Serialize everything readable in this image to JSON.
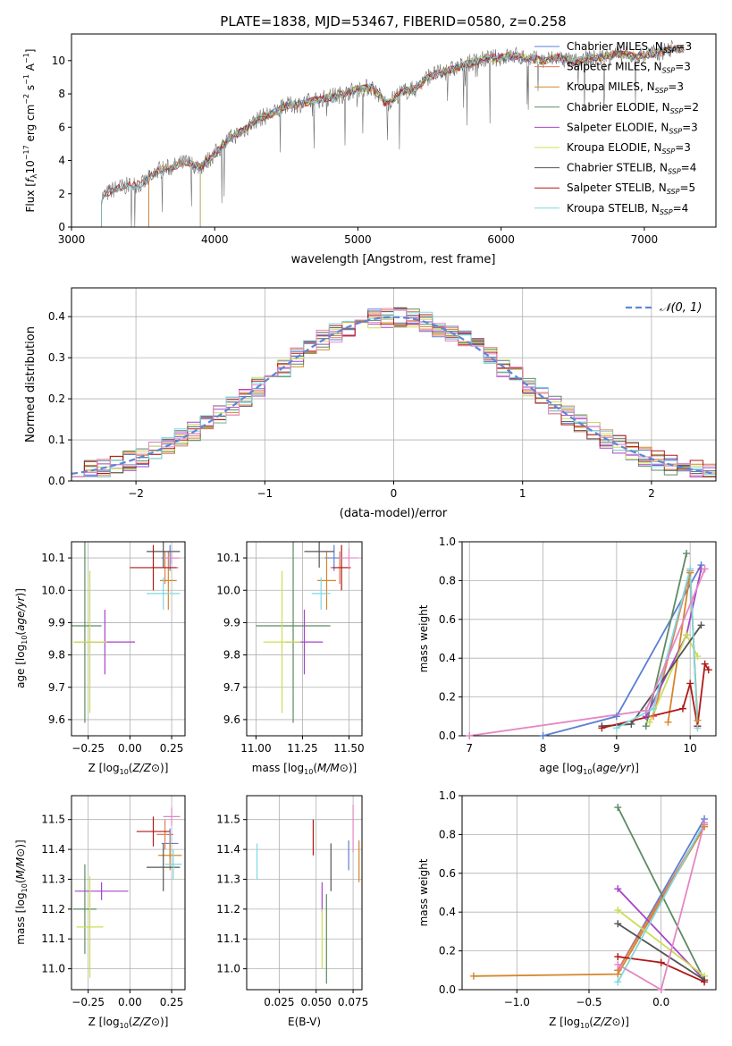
{
  "figure_title": "PLATE=1838, MJD=53467, FIBERID=0580, z=0.258",
  "colors": {
    "Chabrier MILES": "#5b7fd4",
    "Salpeter MILES": "#e57a55",
    "Kroupa MILES": "#d4862a",
    "Chabrier ELODIE": "#5e8a62",
    "Salpeter ELODIE": "#a544c8",
    "Kroupa ELODIE": "#ccdd55",
    "Chabrier STELIB": "#555555",
    "Salpeter STELIB": "#b01818",
    "Kroupa STELIB": "#7dd8e0",
    "pink": "#e388c4"
  },
  "chart_data": [
    {
      "type": "line",
      "id": "spectrum",
      "title": "PLATE=1838, MJD=53467, FIBERID=0580, z=0.258",
      "xlabel": "wavelength [Angstrom, rest frame]",
      "ylabel": "Flux [fλ 10⁻¹⁷ erg cm⁻² s⁻¹ A⁻¹]",
      "xlim": [
        3000,
        7500
      ],
      "ylim": [
        0,
        11.6
      ],
      "xticks": [
        3000,
        4000,
        5000,
        6000,
        7000
      ],
      "yticks": [
        0,
        2,
        4,
        6,
        8,
        10
      ],
      "grid": false,
      "legend_position": "right",
      "legend": [
        "Chabrier MILES, N_SSP=3",
        "Salpeter MILES, N_SSP=3",
        "Kroupa MILES, N_SSP=3",
        "Chabrier ELODIE, N_SSP=2",
        "Salpeter ELODIE, N_SSP=3",
        "Kroupa ELODIE, N_SSP=3",
        "Chabrier STELIB, N_SSP=4",
        "Salpeter STELIB, N_SSP=5",
        "Kroupa STELIB, N_SSP=4"
      ],
      "legend_labels": [
        {
          "name": "Chabrier MILES, N",
          "sub": "SSP",
          "tail": "=3"
        },
        {
          "name": "Salpeter MILES, N",
          "sub": "SSP",
          "tail": "=3"
        },
        {
          "name": "Kroupa MILES, N",
          "sub": "SSP",
          "tail": "=3"
        },
        {
          "name": "Chabrier ELODIE, N",
          "sub": "SSP",
          "tail": "=2"
        },
        {
          "name": "Salpeter ELODIE, N",
          "sub": "SSP",
          "tail": "=3"
        },
        {
          "name": "Kroupa ELODIE, N",
          "sub": "SSP",
          "tail": "=3"
        },
        {
          "name": "Chabrier STELIB, N",
          "sub": "SSP",
          "tail": "=4"
        },
        {
          "name": "Salpeter STELIB, N",
          "sub": "SSP",
          "tail": "=5"
        },
        {
          "name": "Kroupa STELIB, N",
          "sub": "SSP",
          "tail": "=4"
        }
      ],
      "data_series": {
        "name": "data",
        "x": [
          3210,
          3300,
          3400,
          3500,
          3600,
          3700,
          3800,
          3900,
          4000,
          4100,
          4200,
          4300,
          4400,
          4500,
          4600,
          4700,
          4800,
          4900,
          5000,
          5100,
          5200,
          5300,
          5400,
          5500,
          5600,
          5700,
          5800,
          5900,
          6000,
          6100,
          6200,
          6300,
          6400,
          6500,
          6600,
          6700,
          6800,
          6900,
          7000,
          7100,
          7200
        ],
        "y": [
          1.8,
          2.3,
          2.5,
          2.6,
          3.4,
          3.6,
          3.9,
          3.6,
          4.4,
          5.3,
          5.8,
          6.5,
          6.8,
          7.3,
          7.4,
          7.6,
          7.8,
          8.0,
          8.3,
          8.4,
          7.4,
          8.1,
          8.3,
          9.1,
          9.3,
          9.6,
          9.9,
          10.1,
          10.2,
          10.3,
          10.1,
          10.0,
          10.2,
          9.9,
          10.1,
          10.2,
          10.4,
          10.3,
          10.3,
          10.5,
          10.7
        ]
      },
      "model_starts": {
        "Chabrier MILES": 3540,
        "Salpeter MILES": 3540,
        "Kroupa MILES": 3540,
        "Chabrier ELODIE": 3900,
        "Salpeter ELODIE": 3900,
        "Kroupa ELODIE": 3900,
        "Chabrier STELIB": 3210,
        "Salpeter STELIB": 3210,
        "Kroupa STELIB": 3210
      }
    },
    {
      "type": "area",
      "id": "residuals",
      "xlabel": "(data-model)/error",
      "ylabel": "Normed distribution",
      "xlim": [
        -2.5,
        2.5
      ],
      "ylim": [
        0,
        0.47
      ],
      "xticks": [
        -2,
        -1,
        0,
        1,
        2
      ],
      "yticks": [
        0,
        0.1,
        0.2,
        0.3,
        0.4
      ],
      "grid": true,
      "legend_position": "top-right",
      "legend": [
        "𝒩(0, 1)"
      ],
      "reference": {
        "name": "N(0,1)",
        "mean": 0,
        "sigma": 1
      },
      "bin_width": 0.1
    },
    {
      "type": "scatter",
      "id": "age_vs_Z",
      "xlabel": "Z [log10(Z/Z⊙)]",
      "ylabel": "age [log10(age/yr)]",
      "xlim": [
        -0.35,
        0.33
      ],
      "ylim": [
        9.55,
        10.15
      ],
      "xticks": [
        -0.25,
        0.0,
        0.25
      ],
      "yticks": [
        9.6,
        9.7,
        9.8,
        9.9,
        10.0,
        10.1
      ],
      "grid": true,
      "points": [
        {
          "model": "Chabrier MILES",
          "x": 0.24,
          "y": 10.1,
          "xerr": 0.05,
          "yerr": 0.04
        },
        {
          "model": "Salpeter MILES",
          "x": 0.21,
          "y": 10.07,
          "xerr": 0.08,
          "yerr": 0.05
        },
        {
          "model": "Kroupa MILES",
          "x": 0.23,
          "y": 10.03,
          "xerr": 0.05,
          "yerr": 0.09
        },
        {
          "model": "Chabrier ELODIE",
          "x": -0.27,
          "y": 9.89,
          "xerr": 0.1,
          "yerr": 0.3
        },
        {
          "model": "Salpeter ELODIE",
          "x": -0.15,
          "y": 9.84,
          "xerr": 0.18,
          "yerr": 0.1
        },
        {
          "model": "Kroupa ELODIE",
          "x": -0.24,
          "y": 9.84,
          "xerr": 0.1,
          "yerr": 0.22
        },
        {
          "model": "Chabrier STELIB",
          "x": 0.2,
          "y": 10.12,
          "xerr": 0.1,
          "yerr": 0.05
        },
        {
          "model": "Salpeter STELIB",
          "x": 0.14,
          "y": 10.07,
          "xerr": 0.14,
          "yerr": 0.07
        },
        {
          "model": "Kroupa STELIB",
          "x": 0.2,
          "y": 9.99,
          "xerr": 0.1,
          "yerr": 0.05
        },
        {
          "model": "pink",
          "x": 0.25,
          "y": 10.1,
          "xerr": 0.05,
          "yerr": 0.02
        }
      ]
    },
    {
      "type": "scatter",
      "id": "age_vs_mass",
      "xlabel": "mass [log10(M/M⊙)]",
      "xlim": [
        10.95,
        11.57
      ],
      "ylim": [
        9.55,
        10.15
      ],
      "xticks": [
        11.0,
        11.25,
        11.5
      ],
      "yticks": [
        9.6,
        9.7,
        9.8,
        9.9,
        10.0,
        10.1
      ],
      "grid": true,
      "points": [
        {
          "model": "Chabrier MILES",
          "x": 11.42,
          "y": 10.1,
          "xerr": 0.05,
          "yerr": 0.04
        },
        {
          "model": "Salpeter MILES",
          "x": 11.45,
          "y": 10.07,
          "xerr": 0.05,
          "yerr": 0.05
        },
        {
          "model": "Kroupa MILES",
          "x": 11.38,
          "y": 10.03,
          "xerr": 0.05,
          "yerr": 0.09
        },
        {
          "model": "Chabrier ELODIE",
          "x": 11.2,
          "y": 9.89,
          "xerr": 0.2,
          "yerr": 0.3
        },
        {
          "model": "Salpeter ELODIE",
          "x": 11.26,
          "y": 9.84,
          "xerr": 0.1,
          "yerr": 0.1
        },
        {
          "model": "Kroupa ELODIE",
          "x": 11.14,
          "y": 9.84,
          "xerr": 0.1,
          "yerr": 0.22
        },
        {
          "model": "Chabrier STELIB",
          "x": 11.34,
          "y": 10.12,
          "xerr": 0.08,
          "yerr": 0.05
        },
        {
          "model": "Salpeter STELIB",
          "x": 11.46,
          "y": 10.07,
          "xerr": 0.05,
          "yerr": 0.07
        },
        {
          "model": "Kroupa STELIB",
          "x": 11.35,
          "y": 9.99,
          "xerr": 0.05,
          "yerr": 0.05
        },
        {
          "model": "pink",
          "x": 11.5,
          "y": 10.1,
          "xerr": 0.05,
          "yerr": 0.03
        }
      ]
    },
    {
      "type": "line",
      "id": "weight_vs_age",
      "xlabel": "age [log10(age/yr)]",
      "ylabel": "mass weight",
      "xlim": [
        6.9,
        10.35
      ],
      "ylim": [
        0,
        1.0
      ],
      "xticks": [
        7,
        8,
        9,
        10
      ],
      "yticks": [
        0.0,
        0.2,
        0.4,
        0.6,
        0.8,
        1.0
      ],
      "grid": true,
      "series": [
        {
          "model": "Chabrier MILES",
          "x": [
            8.0,
            9.0,
            10.15
          ],
          "y": [
            0.0,
            0.1,
            0.88
          ]
        },
        {
          "model": "Salpeter MILES",
          "x": [
            9.5,
            10.0,
            10.1
          ],
          "y": [
            0.1,
            0.85,
            0.05
          ]
        },
        {
          "model": "Kroupa MILES",
          "x": [
            9.7,
            10.0,
            10.1
          ],
          "y": [
            0.07,
            0.84,
            0.08
          ]
        },
        {
          "model": "Chabrier ELODIE",
          "x": [
            9.4,
            9.95
          ],
          "y": [
            0.05,
            0.94
          ]
        },
        {
          "model": "Salpeter ELODIE",
          "x": [
            9.4,
            9.95,
            10.15
          ],
          "y": [
            0.1,
            0.52,
            0.86
          ]
        },
        {
          "model": "Kroupa ELODIE",
          "x": [
            9.45,
            9.95,
            10.1
          ],
          "y": [
            0.07,
            0.52,
            0.41
          ]
        },
        {
          "model": "Chabrier STELIB",
          "x": [
            8.8,
            9.2,
            10.15
          ],
          "y": [
            0.05,
            0.06,
            0.57
          ]
        },
        {
          "model": "Salpeter STELIB",
          "x": [
            8.8,
            9.9,
            10.0,
            10.1,
            10.2,
            10.25
          ],
          "y": [
            0.04,
            0.14,
            0.27,
            0.05,
            0.37,
            0.34
          ]
        },
        {
          "model": "Kroupa STELIB",
          "x": [
            9.0,
            9.5,
            10.0,
            10.1
          ],
          "y": [
            0.04,
            0.14,
            0.86,
            0.04
          ]
        },
        {
          "model": "pink",
          "x": [
            7.0,
            9.4,
            10.2
          ],
          "y": [
            0.0,
            0.13,
            0.86
          ]
        }
      ]
    },
    {
      "type": "scatter",
      "id": "mass_vs_Z",
      "xlabel": "Z [log10(Z/Z⊙)]",
      "ylabel": "mass [log10(M/M⊙)]",
      "xlim": [
        -0.35,
        0.33
      ],
      "ylim": [
        10.93,
        11.58
      ],
      "xticks": [
        -0.25,
        0.0,
        0.25
      ],
      "yticks": [
        11.0,
        11.1,
        11.2,
        11.3,
        11.4,
        11.5
      ],
      "grid": true,
      "points": [
        {
          "model": "Chabrier MILES",
          "x": 0.24,
          "y": 11.42,
          "xerr": 0.05,
          "yerr": 0.05
        },
        {
          "model": "Salpeter MILES",
          "x": 0.21,
          "y": 11.45,
          "xerr": 0.05,
          "yerr": 0.05
        },
        {
          "model": "Kroupa MILES",
          "x": 0.24,
          "y": 11.38,
          "xerr": 0.07,
          "yerr": 0.05
        },
        {
          "model": "Chabrier ELODIE",
          "x": -0.27,
          "y": 11.2,
          "xerr": 0.07,
          "yerr": 0.15
        },
        {
          "model": "Salpeter ELODIE",
          "x": -0.17,
          "y": 11.26,
          "xerr": 0.16,
          "yerr": 0.03
        },
        {
          "model": "Kroupa ELODIE",
          "x": -0.24,
          "y": 11.14,
          "xerr": 0.08,
          "yerr": 0.17
        },
        {
          "model": "Chabrier STELIB",
          "x": 0.2,
          "y": 11.34,
          "xerr": 0.1,
          "yerr": 0.08
        },
        {
          "model": "Salpeter STELIB",
          "x": 0.14,
          "y": 11.46,
          "xerr": 0.1,
          "yerr": 0.05
        },
        {
          "model": "Kroupa STELIB",
          "x": 0.26,
          "y": 11.35,
          "xerr": 0.05,
          "yerr": 0.05
        },
        {
          "model": "pink",
          "x": 0.25,
          "y": 11.51,
          "xerr": 0.05,
          "yerr": 0.03
        }
      ]
    },
    {
      "type": "scatter",
      "id": "mass_vs_EBV",
      "xlabel": "E(B-V)",
      "xlim": [
        0.003,
        0.081
      ],
      "ylim": [
        10.93,
        11.58
      ],
      "xticks": [
        0.025,
        0.05,
        0.075
      ],
      "yticks": [
        11.0,
        11.1,
        11.2,
        11.3,
        11.4,
        11.5
      ],
      "grid": true,
      "points": [
        {
          "model": "Kroupa STELIB",
          "x": 0.01,
          "y": 11.36,
          "yerr": 0.06
        },
        {
          "model": "Salpeter STELIB",
          "x": 0.048,
          "y": 11.44,
          "yerr": 0.06
        },
        {
          "model": "Salpeter ELODIE",
          "x": 0.054,
          "y": 11.24,
          "yerr": 0.05
        },
        {
          "model": "Kroupa ELODIE",
          "x": 0.054,
          "y": 11.1,
          "yerr": 0.1
        },
        {
          "model": "Chabrier ELODIE",
          "x": 0.057,
          "y": 11.1,
          "yerr": 0.15
        },
        {
          "model": "Chabrier STELIB",
          "x": 0.06,
          "y": 11.34,
          "yerr": 0.08
        },
        {
          "model": "Chabrier MILES",
          "x": 0.072,
          "y": 11.38,
          "yerr": 0.05
        },
        {
          "model": "pink",
          "x": 0.075,
          "y": 11.47,
          "yerr": 0.08
        },
        {
          "model": "Kroupa MILES",
          "x": 0.079,
          "y": 11.36,
          "yerr": 0.07
        }
      ]
    },
    {
      "type": "line",
      "id": "weight_vs_Z",
      "xlabel": "Z [log10(Z/Z⊙)]",
      "ylabel": "mass weight",
      "xlim": [
        -1.38,
        0.38
      ],
      "ylim": [
        0,
        1.0
      ],
      "xticks": [
        -1.0,
        -0.5,
        0.0
      ],
      "yticks": [
        0.0,
        0.2,
        0.4,
        0.6,
        0.8,
        1.0
      ],
      "grid": true,
      "series": [
        {
          "model": "Chabrier MILES",
          "x": [
            -0.3,
            0.3
          ],
          "y": [
            0.1,
            0.88
          ]
        },
        {
          "model": "Salpeter MILES",
          "x": [
            -0.3,
            0.3
          ],
          "y": [
            0.1,
            0.85
          ]
        },
        {
          "model": "Kroupa MILES",
          "x": [
            -1.3,
            -0.3,
            0.3
          ],
          "y": [
            0.07,
            0.08,
            0.84
          ]
        },
        {
          "model": "Chabrier ELODIE",
          "x": [
            -0.3,
            0.3
          ],
          "y": [
            0.94,
            0.05
          ]
        },
        {
          "model": "Salpeter ELODIE",
          "x": [
            -0.3,
            0.3
          ],
          "y": [
            0.52,
            0.05
          ]
        },
        {
          "model": "Kroupa ELODIE",
          "x": [
            -0.3,
            0.3
          ],
          "y": [
            0.41,
            0.07
          ]
        },
        {
          "model": "Chabrier STELIB",
          "x": [
            -0.3,
            0.3
          ],
          "y": [
            0.34,
            0.05
          ]
        },
        {
          "model": "Salpeter STELIB",
          "x": [
            -0.3,
            0.0,
            0.3
          ],
          "y": [
            0.17,
            0.14,
            0.04
          ]
        },
        {
          "model": "Kroupa STELIB",
          "x": [
            -0.3,
            0.3
          ],
          "y": [
            0.04,
            0.86
          ]
        },
        {
          "model": "pink",
          "x": [
            -0.3,
            0.0,
            0.3
          ],
          "y": [
            0.13,
            0.0,
            0.86
          ]
        }
      ]
    }
  ]
}
